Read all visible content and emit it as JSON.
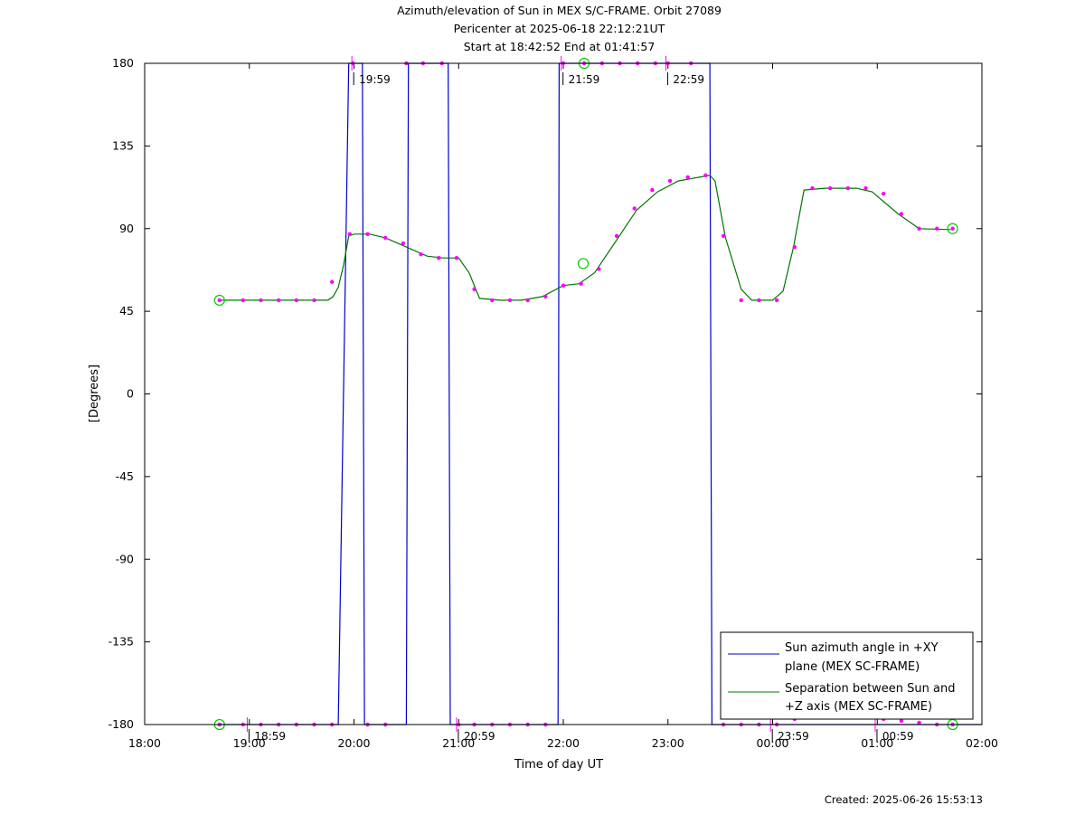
{
  "title_lines": [
    "Azimuth/elevation of Sun in MEX S/C-FRAME.  Orbit 27089",
    "Pericenter at 2025-06-18 22:12:21UT",
    "Start at 18:42:52 End at 01:41:57"
  ],
  "created": "Created: 2025-06-26 15:53:13",
  "chart_data": {
    "type": "line",
    "xlabel": "Time of day UT",
    "ylabel": "[Degrees]",
    "xlim": [
      0,
      8
    ],
    "ylim": [
      -180,
      180
    ],
    "x_unit": "hours since 18:00 UT",
    "x_ticks": [
      "18:00",
      "19:00",
      "20:00",
      "21:00",
      "22:00",
      "23:00",
      "00:00",
      "01:00",
      "02:00"
    ],
    "y_ticks": [
      "180",
      "135",
      "90",
      "45",
      "0",
      "-45",
      "-90",
      "-135",
      "-180"
    ],
    "y_tick_values": [
      180,
      135,
      90,
      45,
      0,
      -45,
      -90,
      -135,
      -180
    ],
    "legend_position": "bottom-right",
    "series": [
      {
        "name": "Sun azimuth angle in +XY plane (MEX SC-FRAME)",
        "legend_lines": [
          "Sun azimuth angle in +XY",
          "plane (MEX SC-FRAME)"
        ],
        "color": "#0000cc",
        "x": [
          0.715,
          1.85,
          1.95,
          1.965,
          1.97,
          2.08,
          2.1,
          2.5,
          2.52,
          2.9,
          2.92,
          3.95,
          3.96,
          5.4,
          5.42,
          8.0
        ],
        "y": [
          -180,
          -180,
          180,
          180,
          180,
          180,
          -180,
          -180,
          180,
          180,
          -180,
          -180,
          180,
          180,
          -180,
          -180
        ]
      },
      {
        "name": "Separation between Sun and +Z axis (MEX SC-FRAME)",
        "legend_lines": [
          "Separation between Sun and",
          "+Z axis (MEX SC-FRAME)"
        ],
        "color": "#007700",
        "x": [
          0.715,
          1.0,
          1.5,
          1.75,
          1.8,
          1.85,
          1.9,
          1.95,
          2.0,
          2.15,
          2.3,
          2.5,
          2.7,
          2.85,
          3.0,
          3.1,
          3.2,
          3.4,
          3.6,
          3.8,
          4.0,
          4.15,
          4.3,
          4.5,
          4.7,
          4.9,
          5.1,
          5.3,
          5.4,
          5.45,
          5.55,
          5.7,
          5.8,
          6.0,
          6.1,
          6.2,
          6.3,
          6.5,
          6.8,
          6.95,
          7.2,
          7.4,
          7.7
        ],
        "y": [
          51,
          51,
          51,
          51,
          53,
          58,
          70,
          86,
          87,
          87,
          85,
          80,
          75,
          74,
          74,
          66,
          52,
          51,
          51,
          53,
          59,
          60,
          66,
          83,
          100,
          110,
          116,
          118,
          119,
          116,
          85,
          57,
          51,
          51,
          56,
          80,
          111,
          112,
          112,
          110,
          98,
          90,
          89.5
        ]
      }
    ],
    "markers_curve": [
      [
        0.715,
        51
      ],
      [
        0.94,
        51
      ],
      [
        1.11,
        51
      ],
      [
        1.28,
        51
      ],
      [
        1.45,
        51
      ],
      [
        1.62,
        51
      ],
      [
        1.79,
        61
      ],
      [
        1.96,
        87
      ],
      [
        2.13,
        87
      ],
      [
        2.3,
        85
      ],
      [
        2.47,
        82
      ],
      [
        2.64,
        76
      ],
      [
        2.81,
        74
      ],
      [
        2.98,
        74
      ],
      [
        3.15,
        57
      ],
      [
        3.32,
        51
      ],
      [
        3.49,
        51
      ],
      [
        3.66,
        51
      ],
      [
        3.83,
        53
      ],
      [
        4.0,
        59
      ],
      [
        4.17,
        60
      ],
      [
        4.34,
        68
      ],
      [
        4.51,
        86
      ],
      [
        4.68,
        101
      ],
      [
        4.85,
        111
      ],
      [
        5.02,
        116
      ],
      [
        5.19,
        118
      ],
      [
        5.36,
        119
      ],
      [
        5.53,
        86
      ],
      [
        5.7,
        51
      ],
      [
        5.87,
        51
      ],
      [
        6.04,
        51
      ],
      [
        6.21,
        80
      ],
      [
        6.38,
        112
      ],
      [
        6.55,
        112
      ],
      [
        6.72,
        112
      ],
      [
        6.89,
        112
      ],
      [
        7.06,
        109
      ],
      [
        7.23,
        98
      ],
      [
        7.4,
        90
      ],
      [
        7.57,
        90
      ],
      [
        7.72,
        90
      ]
    ],
    "markers_top": [
      [
        1.99,
        180
      ],
      [
        2.5,
        180
      ],
      [
        2.66,
        180
      ],
      [
        2.84,
        180
      ],
      [
        4.0,
        180
      ],
      [
        4.2,
        180
      ],
      [
        4.37,
        180
      ],
      [
        4.54,
        180
      ],
      [
        4.71,
        180
      ],
      [
        4.88,
        180
      ],
      [
        5.0,
        180
      ],
      [
        5.22,
        180
      ]
    ],
    "markers_bottom": [
      [
        0.715,
        -180
      ],
      [
        0.94,
        -180
      ],
      [
        1.11,
        -180
      ],
      [
        1.28,
        -180
      ],
      [
        1.45,
        -180
      ],
      [
        1.62,
        -180
      ],
      [
        1.79,
        -180
      ],
      [
        2.13,
        -180
      ],
      [
        2.3,
        -180
      ],
      [
        3.0,
        -180
      ],
      [
        3.15,
        -180
      ],
      [
        3.32,
        -180
      ],
      [
        3.49,
        -180
      ],
      [
        3.66,
        -180
      ],
      [
        3.83,
        -180
      ],
      [
        5.53,
        -180
      ],
      [
        5.7,
        -180
      ],
      [
        5.87,
        -180
      ],
      [
        6.04,
        -180
      ],
      [
        6.21,
        -177
      ],
      [
        6.38,
        -176
      ],
      [
        6.55,
        -175
      ],
      [
        6.72,
        -175
      ],
      [
        6.89,
        -176
      ],
      [
        7.06,
        -177
      ],
      [
        7.23,
        -178
      ],
      [
        7.4,
        -179
      ],
      [
        7.57,
        -180
      ],
      [
        7.72,
        -180
      ]
    ],
    "hour_labels": [
      {
        "x": 0.98,
        "y": -180,
        "text": "18:59",
        "side": "below"
      },
      {
        "x": 1.98,
        "y": 180,
        "text": "19:59",
        "side": "above"
      },
      {
        "x": 2.98,
        "y": -180,
        "text": "20:59",
        "side": "below"
      },
      {
        "x": 3.98,
        "y": 180,
        "text": "21:59",
        "side": "above"
      },
      {
        "x": 4.98,
        "y": 180,
        "text": "22:59",
        "side": "above"
      },
      {
        "x": 5.98,
        "y": -180,
        "text": "23:59",
        "side": "below"
      },
      {
        "x": 6.98,
        "y": -180,
        "text": "00:59",
        "side": "below"
      }
    ],
    "start_end_circles": [
      [
        0.715,
        51
      ],
      [
        0.715,
        -180
      ],
      [
        4.2,
        180
      ],
      [
        7.72,
        90
      ],
      [
        7.72,
        -180
      ],
      [
        4.19,
        71
      ]
    ]
  }
}
